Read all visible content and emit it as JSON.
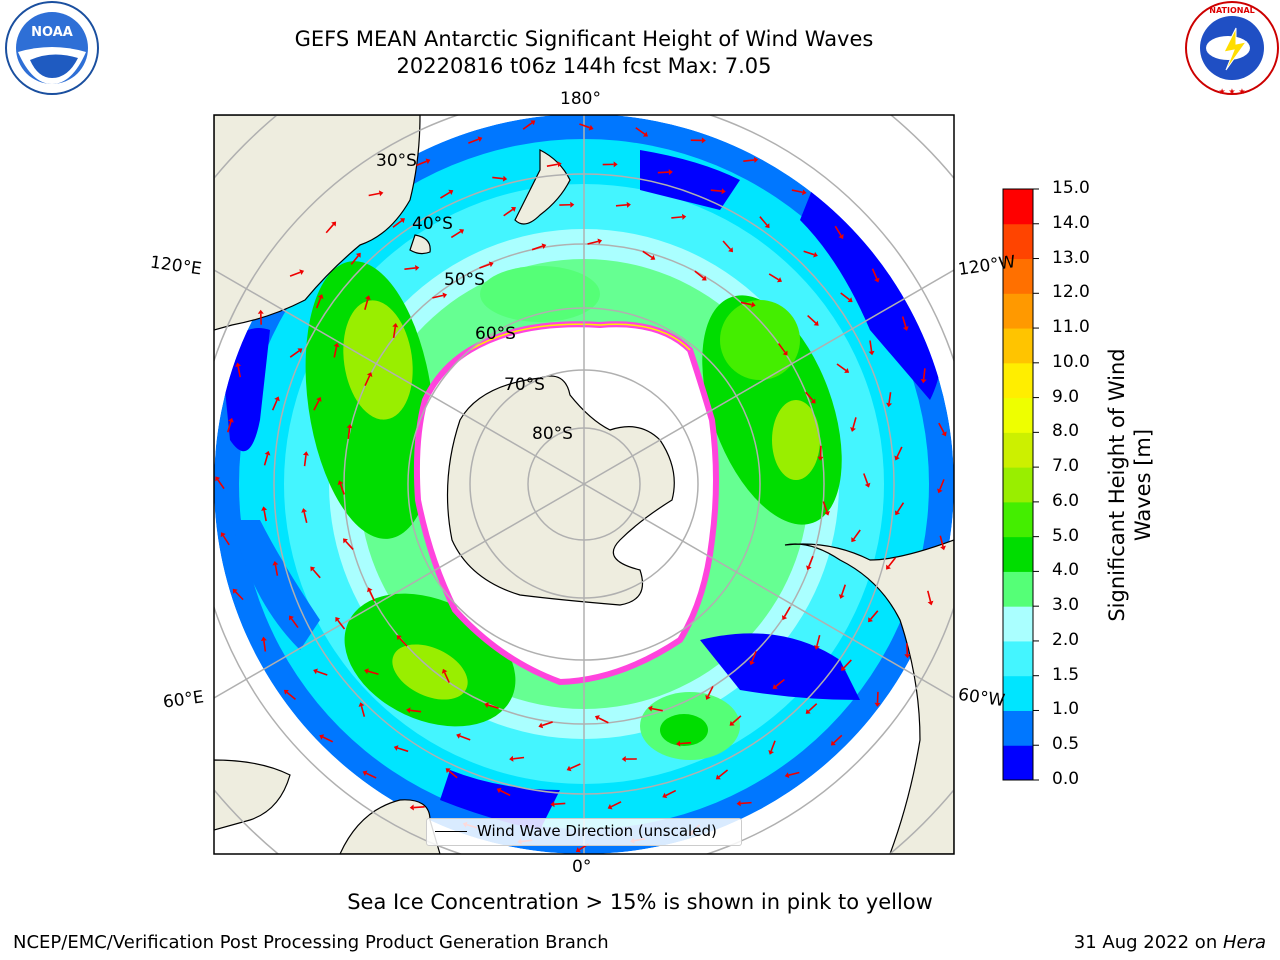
{
  "title": {
    "line1": "GEFS MEAN Antarctic Significant Height of Wind Waves",
    "line2": "20220816 t06z 144h fcst   Max: 7.05"
  },
  "logos": {
    "left": "noaa-logo",
    "right": "nws-logo",
    "noaa_text": "NOAA",
    "nws_text": "NATIONAL WEATHER SERVICE"
  },
  "map": {
    "projection": "south-polar-stereographic",
    "longitude_labels": [
      "180°",
      "120°E",
      "120°W",
      "60°E",
      "60°W",
      "0°"
    ],
    "latitude_labels": [
      "30°S",
      "40°S",
      "50°S",
      "60°S",
      "70°S",
      "80°S"
    ],
    "land_color": "#eeeddf",
    "ice_edge_color": "#ff44dd"
  },
  "colorbar": {
    "label": "Significant Height of Wind Waves [m]",
    "ticks": [
      "0.0",
      "0.5",
      "1.0",
      "1.5",
      "2.0",
      "3.0",
      "4.0",
      "5.0",
      "6.0",
      "7.0",
      "8.0",
      "9.0",
      "10.0",
      "11.0",
      "12.0",
      "13.0",
      "14.0",
      "15.0"
    ],
    "colors": [
      "#0000ff",
      "#0077ff",
      "#00e5ff",
      "#44f5ff",
      "#aaffff",
      "#55ff77",
      "#00dd00",
      "#44ee00",
      "#99ee00",
      "#ccf000",
      "#eeff00",
      "#ffee00",
      "#ffc400",
      "#ff9900",
      "#ff7000",
      "#ff4400",
      "#ff0000"
    ]
  },
  "legend": {
    "label": "Wind Wave Direction (unscaled)"
  },
  "note": "Sea Ice Concentration > 15% is shown in pink to yellow",
  "footer": {
    "left": "NCEP/EMC/Verification Post Processing Product Generation Branch",
    "right_date": "31 Aug 2022 on ",
    "right_machine": "Hera"
  },
  "arrow_color": "#ee0000"
}
